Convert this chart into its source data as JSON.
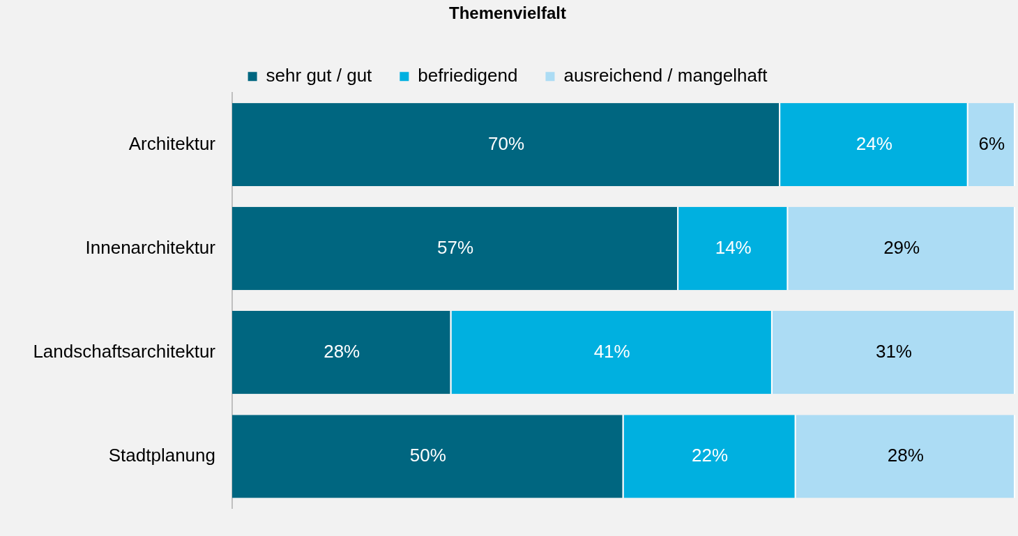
{
  "chart_data": {
    "type": "bar",
    "orientation": "horizontal",
    "stacked": true,
    "title": "Themenvielfalt",
    "categories": [
      "Architektur",
      "Innenarchitektur",
      "Landschaftsarchitektur",
      "Stadtplanung"
    ],
    "series": [
      {
        "name": "sehr gut / gut",
        "color": "#006680",
        "values": [
          70,
          57,
          28,
          50
        ],
        "value_labels": [
          "70%",
          "57%",
          "28%",
          "50%"
        ]
      },
      {
        "name": "befriedigend",
        "color": "#00b0e0",
        "values": [
          24,
          14,
          41,
          22
        ],
        "value_labels": [
          "24%",
          "14%",
          "41%",
          "22%"
        ]
      },
      {
        "name": "ausreichend / mangelhaft",
        "color": "#acdcf4",
        "values": [
          6,
          29,
          31,
          28
        ],
        "value_labels": [
          "6%",
          "29%",
          "31%",
          "28%"
        ]
      }
    ],
    "tick_labels": "y",
    "legend": "top"
  }
}
